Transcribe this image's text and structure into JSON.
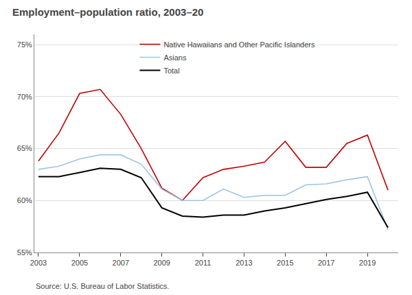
{
  "chart_data": {
    "type": "line",
    "title": "Employment–population ratio, 2003–20",
    "source": "Source: U.S. Bureau of Labor Statistics.",
    "x": [
      2003,
      2004,
      2005,
      2006,
      2007,
      2008,
      2009,
      2010,
      2011,
      2012,
      2013,
      2014,
      2015,
      2016,
      2017,
      2018,
      2019,
      2020
    ],
    "series": [
      {
        "name": "Native Hawaiians and Other Pacific Islanders",
        "color": "#c00000",
        "values": [
          63.8,
          66.5,
          70.3,
          70.7,
          68.3,
          65.0,
          61.2,
          60.0,
          62.2,
          63.0,
          63.3,
          63.7,
          65.7,
          63.2,
          63.2,
          65.5,
          66.3,
          61.0
        ]
      },
      {
        "name": "Asians",
        "color": "#9dc3e6",
        "values": [
          63.0,
          63.3,
          64.0,
          64.4,
          64.4,
          63.5,
          61.1,
          60.0,
          60.0,
          61.1,
          60.3,
          60.5,
          60.5,
          61.5,
          61.6,
          62.0,
          62.3,
          57.2
        ]
      },
      {
        "name": "Total",
        "color": "#000000",
        "values": [
          62.3,
          62.3,
          62.7,
          63.1,
          63.0,
          62.2,
          59.3,
          58.5,
          58.4,
          58.6,
          58.6,
          59.0,
          59.3,
          59.7,
          60.1,
          60.4,
          60.8,
          57.4
        ]
      }
    ],
    "xlim": [
      2002.8,
      2020.5
    ],
    "xticks": [
      2003,
      2005,
      2007,
      2009,
      2011,
      2013,
      2015,
      2017,
      2019
    ],
    "ylim": [
      55,
      76
    ],
    "yticks": [
      {
        "value": 55,
        "label": "55%"
      },
      {
        "value": 60,
        "label": "60%"
      },
      {
        "value": 65,
        "label": "65%"
      },
      {
        "value": 70,
        "label": "70%"
      },
      {
        "value": 75,
        "label": "75%"
      }
    ],
    "grid": "y",
    "legend": "top"
  }
}
